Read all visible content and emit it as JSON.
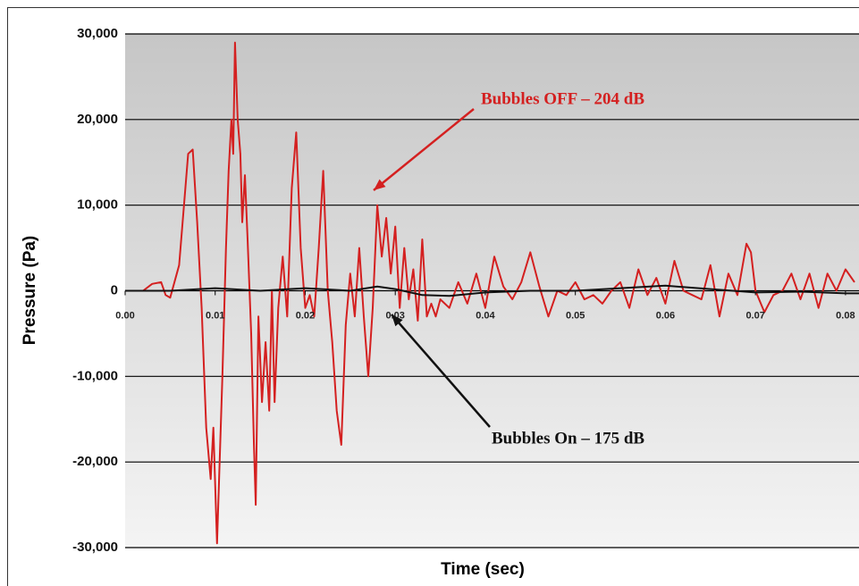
{
  "chart_data": {
    "type": "line",
    "xlabel": "Time (sec)",
    "ylabel": "Pressure (Pa)",
    "xlim": [
      0,
      0.0815
    ],
    "ylim": [
      -30000,
      30000
    ],
    "xticks": [
      {
        "value": 0,
        "label": "0.00"
      },
      {
        "value": 0.01,
        "label": "0.01"
      },
      {
        "value": 0.02,
        "label": "0.02"
      },
      {
        "value": 0.03,
        "label": "0.03"
      },
      {
        "value": 0.04,
        "label": "0.04"
      },
      {
        "value": 0.05,
        "label": "0.05"
      },
      {
        "value": 0.06,
        "label": "0.06"
      },
      {
        "value": 0.07,
        "label": "0.07"
      },
      {
        "value": 0.08,
        "label": "0.08"
      }
    ],
    "yticks": [
      {
        "value": 30000,
        "label": "30,000"
      },
      {
        "value": 20000,
        "label": "20,000"
      },
      {
        "value": 10000,
        "label": "10,000"
      },
      0,
      {
        "value": -10000,
        "label": "-10,000"
      },
      {
        "value": -20000,
        "label": "-20,000"
      },
      {
        "value": -30000,
        "label": "-30,000"
      }
    ],
    "grid": true,
    "annotations": [
      {
        "text": "Bubbles OFF –  204 dB",
        "color": "#d42020"
      },
      {
        "text": "Bubbles On – 175 dB",
        "color": "#111111"
      }
    ],
    "series": [
      {
        "color": "#d42020",
        "x": [
          0,
          0.002,
          0.003,
          0.004,
          0.0045,
          0.005,
          0.006,
          0.007,
          0.0075,
          0.008,
          0.0085,
          0.009,
          0.0095,
          0.0098,
          0.0102,
          0.0108,
          0.0112,
          0.0115,
          0.0118,
          0.012,
          0.0122,
          0.0125,
          0.0128,
          0.013,
          0.0133,
          0.0136,
          0.014,
          0.0143,
          0.0145,
          0.0148,
          0.0152,
          0.0156,
          0.016,
          0.0163,
          0.0166,
          0.017,
          0.0175,
          0.018,
          0.0185,
          0.019,
          0.0195,
          0.02,
          0.0205,
          0.021,
          0.0215,
          0.022,
          0.0225,
          0.023,
          0.0235,
          0.024,
          0.0245,
          0.025,
          0.0255,
          0.026,
          0.0265,
          0.027,
          0.0275,
          0.028,
          0.0285,
          0.029,
          0.0295,
          0.03,
          0.0305,
          0.031,
          0.0315,
          0.032,
          0.0325,
          0.033,
          0.0335,
          0.034,
          0.0345,
          0.035,
          0.036,
          0.037,
          0.038,
          0.039,
          0.04,
          0.041,
          0.042,
          0.043,
          0.044,
          0.045,
          0.046,
          0.047,
          0.048,
          0.049,
          0.05,
          0.051,
          0.052,
          0.053,
          0.054,
          0.055,
          0.056,
          0.057,
          0.058,
          0.059,
          0.06,
          0.061,
          0.062,
          0.063,
          0.064,
          0.065,
          0.066,
          0.067,
          0.068,
          0.069,
          0.0695,
          0.07,
          0.071,
          0.072,
          0.073,
          0.074,
          0.075,
          0.076,
          0.077,
          0.078,
          0.079,
          0.08,
          0.081
        ],
        "values": [
          0,
          0,
          800,
          1000,
          -500,
          -800,
          3000,
          16000,
          16500,
          8000,
          -2000,
          -16000,
          -22000,
          -16000,
          -29500,
          -10000,
          5000,
          14000,
          20000,
          16000,
          29000,
          20000,
          16000,
          8000,
          13500,
          6000,
          -5000,
          -18000,
          -25000,
          -3000,
          -13000,
          -6000,
          -14000,
          0,
          -13000,
          -2000,
          4000,
          -3000,
          12000,
          18500,
          5000,
          -2000,
          -500,
          -3000,
          5000,
          14000,
          0,
          -6000,
          -14000,
          -18000,
          -4000,
          2000,
          -3000,
          5000,
          -3000,
          -10000,
          -2000,
          10000,
          4000,
          8500,
          2000,
          7500,
          -2000,
          5000,
          -1000,
          2500,
          -3500,
          6000,
          -3000,
          -1500,
          -3000,
          -1000,
          -2000,
          1000,
          -1500,
          2000,
          -2000,
          4000,
          500,
          -1000,
          1000,
          4500,
          500,
          -3000,
          0,
          -500,
          1000,
          -1000,
          -500,
          -1500,
          0,
          1000,
          -2000,
          2500,
          -500,
          1500,
          -1500,
          3500,
          0,
          -500,
          -1000,
          3000,
          -3000,
          2000,
          -500,
          5500,
          4500,
          0,
          -2500,
          -500,
          0,
          2000,
          -1000,
          2000,
          -2000,
          2000,
          0,
          2500,
          1000
        ]
      },
      {
        "color": "#111111",
        "x": [
          0,
          0.005,
          0.01,
          0.015,
          0.02,
          0.025,
          0.028,
          0.03,
          0.033,
          0.036,
          0.04,
          0.045,
          0.05,
          0.055,
          0.06,
          0.065,
          0.07,
          0.075,
          0.08,
          0.0815
        ],
        "values": [
          0,
          0,
          300,
          0,
          300,
          0,
          500,
          200,
          -500,
          -600,
          -200,
          0,
          0,
          300,
          600,
          200,
          -200,
          -100,
          -300,
          -300
        ]
      }
    ]
  }
}
